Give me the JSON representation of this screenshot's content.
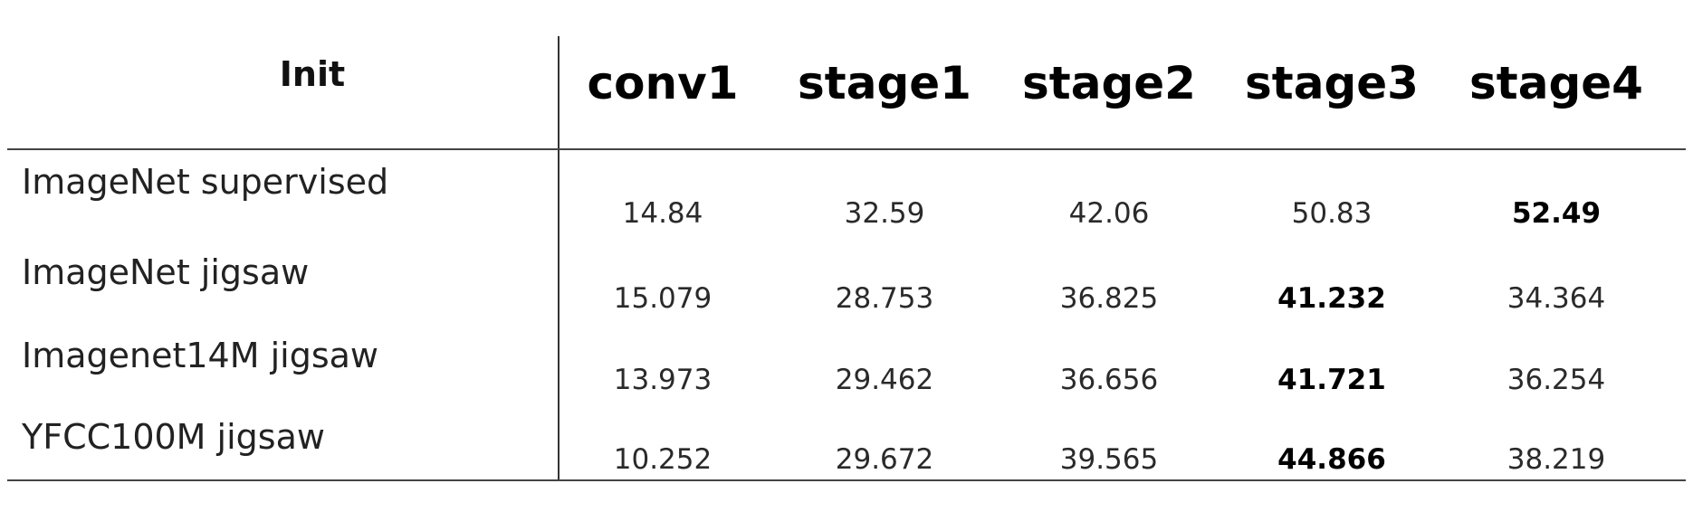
{
  "table": {
    "header": {
      "init_label": "Init",
      "columns": [
        "conv1",
        "stage1",
        "stage2",
        "stage3",
        "stage4"
      ]
    },
    "rows": [
      {
        "label": "ImageNet supervised",
        "values": [
          "14.84",
          "32.59",
          "42.06",
          "50.83",
          "52.49"
        ],
        "bold": [
          false,
          false,
          false,
          false,
          true
        ]
      },
      {
        "label": "ImageNet jigsaw",
        "values": [
          "15.079",
          "28.753",
          "36.825",
          "41.232",
          "34.364"
        ],
        "bold": [
          false,
          false,
          false,
          true,
          false
        ]
      },
      {
        "label": "Imagenet14M jigsaw",
        "values": [
          "13.973",
          "29.462",
          "36.656",
          "41.721",
          "36.254"
        ],
        "bold": [
          false,
          false,
          false,
          true,
          false
        ]
      },
      {
        "label": "YFCC100M jigsaw",
        "values": [
          "10.252",
          "29.672",
          "39.565",
          "44.866",
          "38.219"
        ],
        "bold": [
          false,
          false,
          false,
          true,
          false
        ]
      }
    ]
  }
}
